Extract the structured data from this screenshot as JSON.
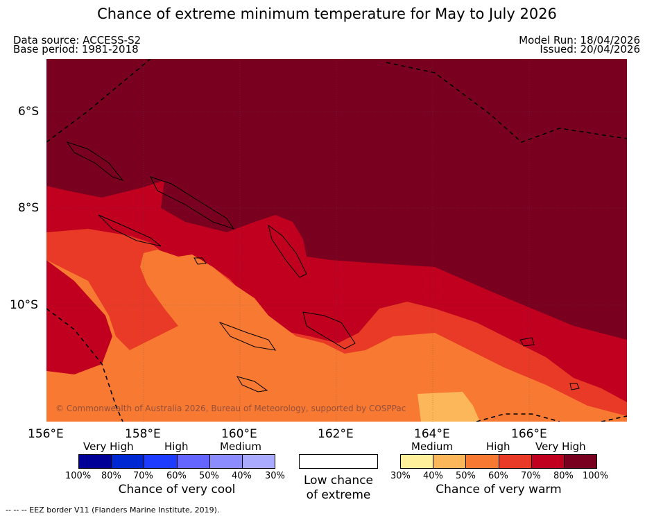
{
  "header": {
    "title": "Chance of extreme minimum temperature for May to July 2026",
    "data_source": "Data source: ACCESS-S2",
    "base_period": "Base period: 1981-2018",
    "model_run": "Model Run: 18/04/2026",
    "issued": "Issued: 20/04/2026"
  },
  "map": {
    "lat_labels": [
      "6°S",
      "8°S",
      "10°S"
    ],
    "lon_labels": [
      "156°E",
      "158°E",
      "160°E",
      "162°E",
      "164°E",
      "166°E"
    ],
    "copyright": "© Commonwealth of Australia 2026, Bureau of Meteorology, supported by COSPPac",
    "colors": {
      "very_high_warm": "#7a0020",
      "high_warm_80": "#c0001e",
      "high_warm_70": "#e83a26",
      "medium_warm_60": "#f87a32",
      "medium_warm_50": "#fcb75a"
    }
  },
  "legend": {
    "cool": {
      "categories": [
        "Very High",
        "High",
        "Medium"
      ],
      "percents": [
        "100%",
        "80%",
        "70%",
        "60%",
        "50%",
        "40%",
        "30%"
      ],
      "colors": [
        "#000096",
        "#0028d2",
        "#1e3cff",
        "#6464ff",
        "#8c8cff",
        "#aaaaff"
      ],
      "title": "Chance of very cool"
    },
    "low": {
      "line1": "Low chance",
      "line2": "of extreme"
    },
    "warm": {
      "categories": [
        "Medium",
        "High",
        "Very High"
      ],
      "percents": [
        "30%",
        "40%",
        "50%",
        "60%",
        "70%",
        "80%",
        "100%"
      ],
      "colors": [
        "#fff09c",
        "#fcb75a",
        "#f87a32",
        "#e83a26",
        "#c0001e",
        "#7a0020"
      ],
      "title": "Chance of very warm"
    }
  },
  "footer": "--  --  -- EEZ border V11 (Flanders Marine Institute, 2019)."
}
